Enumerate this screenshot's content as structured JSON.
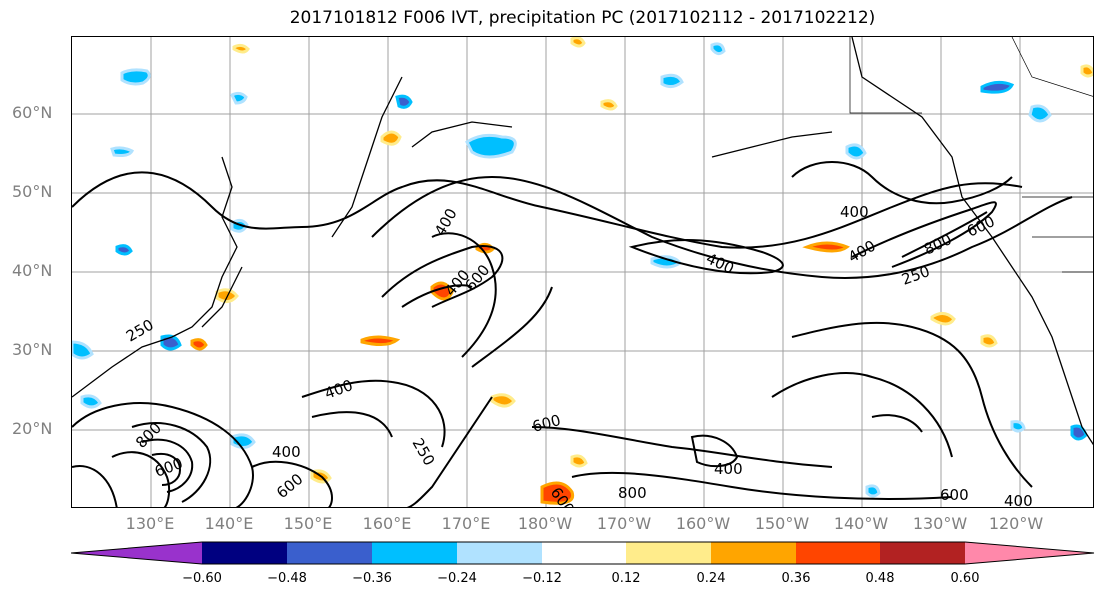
{
  "title": "2017101812 F006 IVT, precipitation PC (2017102112 - 2017102212)",
  "lat_labels": [
    "60°N",
    "50°N",
    "40°N",
    "30°N",
    "20°N"
  ],
  "lon_labels": [
    "130°E",
    "140°E",
    "150°E",
    "160°E",
    "170°E",
    "180°W",
    "170°W",
    "160°W",
    "150°W",
    "140°W",
    "130°W",
    "120°W"
  ],
  "contour_labels": [
    "400",
    "400",
    "400",
    "400",
    "400",
    "400",
    "400",
    "250",
    "250",
    "250",
    "600",
    "600",
    "600",
    "600",
    "800",
    "800",
    "600",
    "400",
    "400",
    "600",
    "800",
    "600"
  ],
  "colorbar": {
    "ticks": [
      "−0.60",
      "−0.48",
      "−0.36",
      "−0.24",
      "−0.12",
      "0.12",
      "0.24",
      "0.36",
      "0.48",
      "0.60"
    ],
    "colors": [
      "#9932CC",
      "#000080",
      "#3A5FCD",
      "#00BFFF",
      "#B0E2FF",
      "#FFFFFF",
      "#FFEC8B",
      "#FFA500",
      "#FF4500",
      "#B22222",
      "#FF88AA"
    ]
  },
  "colors": {
    "grid": "#a0a0a0",
    "axis_label": "#808080",
    "contour": "#000000"
  }
}
